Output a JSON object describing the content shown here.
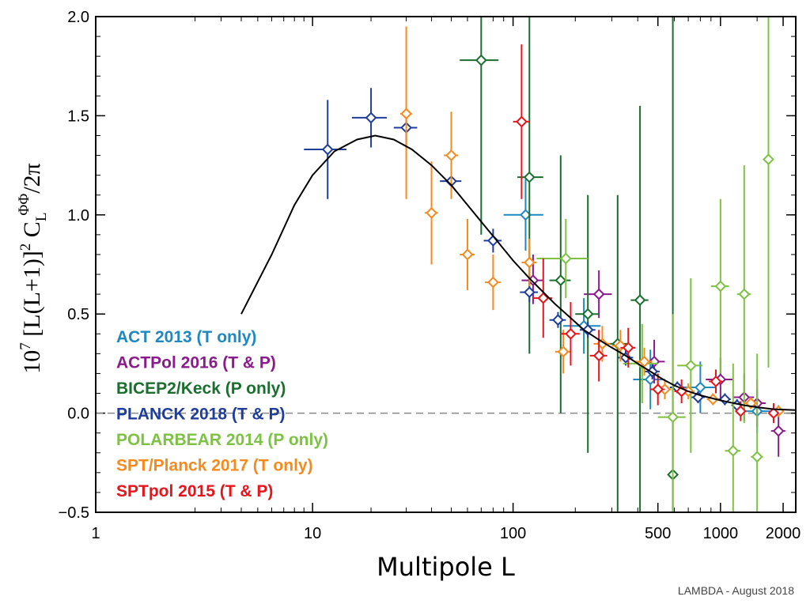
{
  "chart_data": {
    "type": "scatter",
    "title": "",
    "xlabel": "Multipole L",
    "ylabel_parts": {
      "prefix": "10",
      "prefix_sup": "7",
      "body": " [L(L+1)]",
      "body_sup": "2",
      "c": " C",
      "c_sub": "L",
      "c_sup": "ΦΦ",
      "suffix": "/2π"
    },
    "xscale": "log10(L+1)",
    "xlim": [
      0,
      2300
    ],
    "ylim": [
      -0.5,
      2.0
    ],
    "xticks": [
      {
        "value": 0,
        "label": "1"
      },
      {
        "value": 10,
        "label": "10"
      },
      {
        "value": 100,
        "label": "100"
      },
      {
        "value": 500,
        "label": "500"
      },
      {
        "value": 1000,
        "label": "1000"
      },
      {
        "value": 2000,
        "label": "2000"
      }
    ],
    "yticks": [
      {
        "value": -0.5,
        "label": "−0.5"
      },
      {
        "value": 0.0,
        "label": "0.0"
      },
      {
        "value": 0.5,
        "label": "0.5"
      },
      {
        "value": 1.0,
        "label": "1.0"
      },
      {
        "value": 1.5,
        "label": "1.5"
      },
      {
        "value": 2.0,
        "label": "2.0"
      }
    ],
    "zero_line": 0.0,
    "theory_curve": {
      "name": "LCDM theory",
      "color": "#000000",
      "points": [
        [
          4,
          0.5
        ],
        [
          6,
          0.8
        ],
        [
          8,
          1.05
        ],
        [
          10,
          1.2
        ],
        [
          13,
          1.32
        ],
        [
          17,
          1.38
        ],
        [
          21,
          1.4
        ],
        [
          26,
          1.38
        ],
        [
          32,
          1.33
        ],
        [
          40,
          1.25
        ],
        [
          50,
          1.15
        ],
        [
          60,
          1.05
        ],
        [
          72,
          0.95
        ],
        [
          85,
          0.86
        ],
        [
          100,
          0.77
        ],
        [
          120,
          0.68
        ],
        [
          140,
          0.61
        ],
        [
          160,
          0.55
        ],
        [
          190,
          0.48
        ],
        [
          220,
          0.42
        ],
        [
          260,
          0.37
        ],
        [
          300,
          0.33
        ],
        [
          350,
          0.29
        ],
        [
          400,
          0.25
        ],
        [
          460,
          0.21
        ],
        [
          530,
          0.17
        ],
        [
          600,
          0.14
        ],
        [
          700,
          0.11
        ],
        [
          800,
          0.09
        ],
        [
          950,
          0.07
        ],
        [
          1100,
          0.055
        ],
        [
          1300,
          0.04
        ],
        [
          1500,
          0.03
        ],
        [
          1800,
          0.02
        ],
        [
          2300,
          0.015
        ]
      ]
    },
    "series": [
      {
        "name": "ACT 2013 (T only)",
        "color": "#1e88c0",
        "points": [
          {
            "x": 115,
            "y": 1.0,
            "xlo": 90,
            "xhi": 140,
            "ylo": 0.82,
            "yhi": 1.18
          },
          {
            "x": 220,
            "y": 0.44,
            "xlo": 175,
            "xhi": 265,
            "ylo": 0.3,
            "yhi": 0.58
          },
          {
            "x": 460,
            "y": 0.17,
            "xlo": 380,
            "xhi": 540,
            "ylo": 0.02,
            "yhi": 0.32
          },
          {
            "x": 800,
            "y": 0.13,
            "xlo": 650,
            "xhi": 950,
            "ylo": 0.0,
            "yhi": 0.26
          },
          {
            "x": 1500,
            "y": 0.01,
            "xlo": 1300,
            "xhi": 1800,
            "ylo": -0.1,
            "yhi": 0.12
          }
        ]
      },
      {
        "name": "ACTPol 2016 (T & P)",
        "color": "#8b1a8c",
        "points": [
          {
            "x": 125,
            "y": 0.67,
            "xlo": 110,
            "xhi": 140,
            "ylo": 0.55,
            "yhi": 0.8
          },
          {
            "x": 260,
            "y": 0.6,
            "xlo": 220,
            "xhi": 300,
            "ylo": 0.48,
            "yhi": 0.72
          },
          {
            "x": 480,
            "y": 0.26,
            "xlo": 420,
            "xhi": 540,
            "ylo": 0.15,
            "yhi": 0.37
          },
          {
            "x": 1000,
            "y": 0.17,
            "xlo": 850,
            "xhi": 1150,
            "ylo": 0.06,
            "yhi": 0.28
          },
          {
            "x": 1300,
            "y": 0.08,
            "xlo": 1150,
            "xhi": 1450,
            "ylo": -0.04,
            "yhi": 0.2
          },
          {
            "x": 1500,
            "y": 0.05,
            "xlo": 1350,
            "xhi": 1650,
            "ylo": -0.07,
            "yhi": 0.17
          },
          {
            "x": 1900,
            "y": -0.09,
            "xlo": 1750,
            "xhi": 2050,
            "ylo": -0.22,
            "yhi": 0.04
          }
        ]
      },
      {
        "name": "BICEP2/Keck (P only)",
        "color": "#1a6e2e",
        "points": [
          {
            "x": 70,
            "y": 1.78,
            "xlo": 55,
            "xhi": 85,
            "ylo": 0.9,
            "yhi": 2.0
          },
          {
            "x": 120,
            "y": 1.19,
            "xlo": 105,
            "xhi": 140,
            "ylo": 0.3,
            "yhi": 2.0
          },
          {
            "x": 170,
            "y": 0.67,
            "xlo": 150,
            "xhi": 190,
            "ylo": 0.0,
            "yhi": 1.3
          },
          {
            "x": 230,
            "y": 0.5,
            "xlo": 200,
            "xhi": 260,
            "ylo": -0.2,
            "yhi": 1.1
          },
          {
            "x": 320,
            "y": 0.35,
            "xlo": 280,
            "xhi": 360,
            "ylo": -0.5,
            "yhi": 1.1
          },
          {
            "x": 410,
            "y": 0.57,
            "xlo": 370,
            "xhi": 450,
            "ylo": -0.5,
            "yhi": 1.55
          },
          {
            "x": 590,
            "y": -0.31,
            "xlo": 560,
            "xhi": 620,
            "ylo": -0.5,
            "yhi": 2.0
          }
        ]
      },
      {
        "name": "PLANCK 2018 (T & P)",
        "color": "#1f3e9c",
        "points": [
          {
            "x": 12,
            "y": 1.33,
            "xlo": 9,
            "xhi": 15,
            "ylo": 1.08,
            "yhi": 1.58
          },
          {
            "x": 20,
            "y": 1.49,
            "xlo": 16,
            "xhi": 24,
            "ylo": 1.34,
            "yhi": 1.64
          },
          {
            "x": 30,
            "y": 1.44,
            "xlo": 26,
            "xhi": 34,
            "ylo": 1.34,
            "yhi": 1.54
          },
          {
            "x": 50,
            "y": 1.17,
            "xlo": 44,
            "xhi": 56,
            "ylo": 1.1,
            "yhi": 1.24
          },
          {
            "x": 80,
            "y": 0.87,
            "xlo": 72,
            "xhi": 88,
            "ylo": 0.81,
            "yhi": 0.93
          },
          {
            "x": 120,
            "y": 0.61,
            "xlo": 108,
            "xhi": 132,
            "ylo": 0.56,
            "yhi": 0.66
          },
          {
            "x": 165,
            "y": 0.47,
            "xlo": 150,
            "xhi": 180,
            "ylo": 0.43,
            "yhi": 0.51
          },
          {
            "x": 230,
            "y": 0.42,
            "xlo": 210,
            "xhi": 250,
            "ylo": 0.38,
            "yhi": 0.46
          },
          {
            "x": 350,
            "y": 0.28,
            "xlo": 320,
            "xhi": 380,
            "ylo": 0.24,
            "yhi": 0.32
          },
          {
            "x": 470,
            "y": 0.21,
            "xlo": 430,
            "xhi": 510,
            "ylo": 0.17,
            "yhi": 0.25
          },
          {
            "x": 620,
            "y": 0.13,
            "xlo": 570,
            "xhi": 670,
            "ylo": 0.1,
            "yhi": 0.16
          },
          {
            "x": 780,
            "y": 0.08,
            "xlo": 720,
            "xhi": 840,
            "ylo": 0.05,
            "yhi": 0.11
          },
          {
            "x": 1050,
            "y": 0.07,
            "xlo": 980,
            "xhi": 1120,
            "ylo": 0.04,
            "yhi": 0.1
          },
          {
            "x": 1200,
            "y": 0.04,
            "xlo": 1150,
            "xhi": 1250,
            "ylo": 0.01,
            "yhi": 0.07
          }
        ]
      },
      {
        "name": "POLARBEAR 2014 (P only)",
        "color": "#7dc242",
        "points": [
          {
            "x": 180,
            "y": 0.78,
            "xlo": 130,
            "xhi": 230,
            "ylo": 0.58,
            "yhi": 0.98
          },
          {
            "x": 420,
            "y": 0.25,
            "xlo": 340,
            "xhi": 500,
            "ylo": 0.05,
            "yhi": 0.45
          },
          {
            "x": 590,
            "y": -0.02,
            "xlo": 500,
            "xhi": 680,
            "ylo": -0.5,
            "yhi": 0.5
          },
          {
            "x": 720,
            "y": 0.24,
            "xlo": 620,
            "xhi": 820,
            "ylo": -0.2,
            "yhi": 0.68
          },
          {
            "x": 1000,
            "y": 0.64,
            "xlo": 900,
            "xhi": 1100,
            "ylo": 0.2,
            "yhi": 1.08
          },
          {
            "x": 1150,
            "y": -0.19,
            "xlo": 1050,
            "xhi": 1250,
            "ylo": -0.5,
            "yhi": 0.25
          },
          {
            "x": 1300,
            "y": 0.6,
            "xlo": 1200,
            "xhi": 1400,
            "ylo": -0.05,
            "yhi": 1.25
          },
          {
            "x": 1500,
            "y": -0.22,
            "xlo": 1400,
            "xhi": 1600,
            "ylo": -0.5,
            "yhi": 0.3
          },
          {
            "x": 1700,
            "y": 1.28,
            "xlo": 1620,
            "xhi": 1780,
            "ylo": 0.23,
            "yhi": 2.0
          }
        ]
      },
      {
        "name": "SPT/Planck 2017 (T only)",
        "color": "#f78a1d",
        "points": [
          {
            "x": 30,
            "y": 1.51,
            "xlo": 28,
            "xhi": 32,
            "ylo": 1.08,
            "yhi": 1.95
          },
          {
            "x": 40,
            "y": 1.01,
            "xlo": 37,
            "xhi": 43,
            "ylo": 0.75,
            "yhi": 1.27
          },
          {
            "x": 50,
            "y": 1.3,
            "xlo": 46,
            "xhi": 54,
            "ylo": 1.08,
            "yhi": 1.52
          },
          {
            "x": 60,
            "y": 0.8,
            "xlo": 55,
            "xhi": 65,
            "ylo": 0.62,
            "yhi": 0.98
          },
          {
            "x": 80,
            "y": 0.66,
            "xlo": 73,
            "xhi": 87,
            "ylo": 0.52,
            "yhi": 0.8
          },
          {
            "x": 120,
            "y": 0.76,
            "xlo": 110,
            "xhi": 130,
            "ylo": 0.64,
            "yhi": 0.88
          },
          {
            "x": 175,
            "y": 0.31,
            "xlo": 160,
            "xhi": 190,
            "ylo": 0.2,
            "yhi": 0.42
          },
          {
            "x": 270,
            "y": 0.35,
            "xlo": 245,
            "xhi": 295,
            "ylo": 0.26,
            "yhi": 0.44
          },
          {
            "x": 330,
            "y": 0.34,
            "xlo": 300,
            "xhi": 360,
            "ylo": 0.26,
            "yhi": 0.42
          },
          {
            "x": 430,
            "y": 0.26,
            "xlo": 390,
            "xhi": 470,
            "ylo": 0.19,
            "yhi": 0.33
          },
          {
            "x": 540,
            "y": 0.12,
            "xlo": 500,
            "xhi": 580,
            "ylo": 0.07,
            "yhi": 0.17
          },
          {
            "x": 700,
            "y": 0.11,
            "xlo": 650,
            "xhi": 750,
            "ylo": 0.07,
            "yhi": 0.15
          },
          {
            "x": 920,
            "y": 0.07,
            "xlo": 860,
            "xhi": 980,
            "ylo": 0.04,
            "yhi": 0.1
          },
          {
            "x": 1400,
            "y": 0.05,
            "xlo": 1300,
            "xhi": 1500,
            "ylo": 0.02,
            "yhi": 0.08
          },
          {
            "x": 1900,
            "y": 0.01,
            "xlo": 1800,
            "xhi": 2000,
            "ylo": -0.02,
            "yhi": 0.04
          }
        ]
      },
      {
        "name": "SPTpol 2015 (T & P)",
        "color": "#e8141c",
        "points": [
          {
            "x": 110,
            "y": 1.47,
            "xlo": 100,
            "xhi": 120,
            "ylo": 1.08,
            "yhi": 1.86
          },
          {
            "x": 140,
            "y": 0.58,
            "xlo": 125,
            "xhi": 155,
            "ylo": 0.38,
            "yhi": 0.78
          },
          {
            "x": 190,
            "y": 0.4,
            "xlo": 170,
            "xhi": 210,
            "ylo": 0.24,
            "yhi": 0.56
          },
          {
            "x": 260,
            "y": 0.29,
            "xlo": 235,
            "xhi": 285,
            "ylo": 0.16,
            "yhi": 0.42
          },
          {
            "x": 360,
            "y": 0.33,
            "xlo": 330,
            "xhi": 390,
            "ylo": 0.23,
            "yhi": 0.43
          },
          {
            "x": 500,
            "y": 0.12,
            "xlo": 460,
            "xhi": 540,
            "ylo": 0.04,
            "yhi": 0.2
          },
          {
            "x": 650,
            "y": 0.11,
            "xlo": 600,
            "xhi": 700,
            "ylo": 0.05,
            "yhi": 0.17
          },
          {
            "x": 950,
            "y": 0.16,
            "xlo": 880,
            "xhi": 1020,
            "ylo": 0.1,
            "yhi": 0.22
          },
          {
            "x": 1250,
            "y": 0.01,
            "xlo": 1180,
            "xhi": 1320,
            "ylo": -0.04,
            "yhi": 0.06
          },
          {
            "x": 1800,
            "y": 0.0,
            "xlo": 1700,
            "xhi": 1900,
            "ylo": -0.05,
            "yhi": 0.05
          }
        ]
      }
    ],
    "legend": [
      {
        "label": "ACT 2013 (T only)",
        "color": "#1e88c0"
      },
      {
        "label": "ACTPol 2016 (T & P)",
        "color": "#8b1a8c"
      },
      {
        "label": "BICEP2/Keck (P only)",
        "color": "#1a6e2e"
      },
      {
        "label": "PLANCK 2018 (T & P)",
        "color": "#1f3e9c"
      },
      {
        "label": "POLARBEAR 2014 (P only)",
        "color": "#7dc242"
      },
      {
        "label": "SPT/Planck  2017 (T only)",
        "color": "#f78a1d"
      },
      {
        "label": "SPTpol 2015 (T & P)",
        "color": "#e8141c"
      }
    ],
    "legend_position": "lower-left",
    "credit": "LAMBDA - August 2018"
  }
}
